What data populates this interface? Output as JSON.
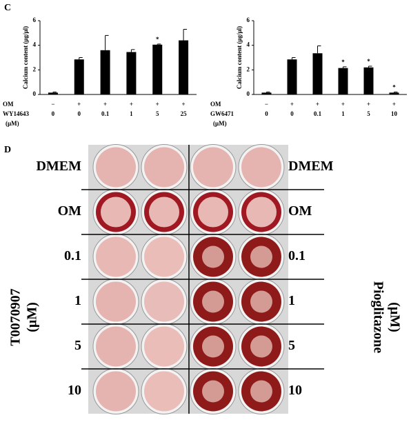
{
  "panels": [
    "C",
    "D"
  ],
  "chart_data": [
    {
      "type": "bar",
      "y_label": "Calcium content (μg/μl)",
      "om_label": "OM",
      "x_label": "WY14643",
      "x_unit": "(μM)",
      "om_row": [
        "−",
        "+",
        "+",
        "+",
        "+",
        "+"
      ],
      "categories": [
        "0",
        "0",
        "0.1",
        "1",
        "5",
        "25"
      ],
      "values": [
        0.15,
        2.85,
        3.6,
        3.45,
        4.05,
        4.4
      ],
      "errors": [
        0.05,
        0.15,
        1.2,
        0.2,
        0.05,
        0.9
      ],
      "significance": [
        null,
        null,
        null,
        null,
        "*",
        null
      ],
      "color": "#000000",
      "ylim": [
        0,
        6
      ],
      "yticks": [
        0,
        2,
        4,
        6
      ]
    },
    {
      "type": "bar",
      "y_label": "Calcium content (μg/μl)",
      "om_label": "OM",
      "x_label": "GW6471",
      "x_unit": "(μM)",
      "om_row": [
        "−",
        "+",
        "+",
        "+",
        "+",
        "+"
      ],
      "categories": [
        "0",
        "0",
        "0.1",
        "1",
        "5",
        "10"
      ],
      "values": [
        0.15,
        2.85,
        3.35,
        2.15,
        2.2,
        0.15
      ],
      "errors": [
        0.05,
        0.15,
        0.6,
        0.1,
        0.1,
        0.05
      ],
      "significance": [
        null,
        null,
        null,
        "*",
        "*",
        "*"
      ],
      "color": "#000000",
      "ylim": [
        0,
        6
      ],
      "yticks": [
        0,
        2,
        4,
        6
      ]
    }
  ],
  "plate": {
    "left_rows": [
      "DMEM",
      "OM",
      "0.1",
      "1",
      "5",
      "10"
    ],
    "right_rows": [
      "DMEM",
      "OM",
      "0.1",
      "1",
      "5",
      "10"
    ],
    "left_axis": [
      "T0070907",
      "(μM)"
    ],
    "right_axis": [
      "Pioglitazone",
      "(μM)"
    ]
  }
}
